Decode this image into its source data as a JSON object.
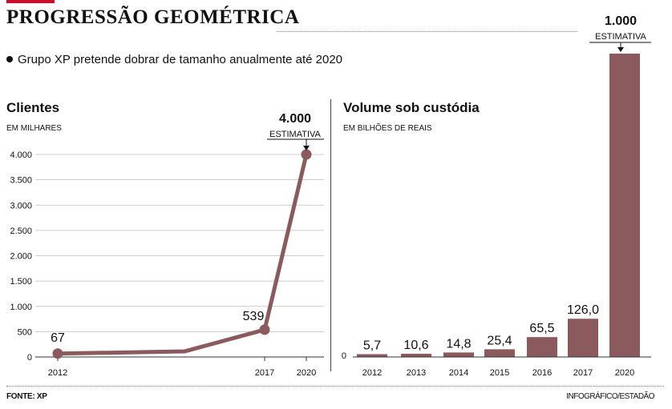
{
  "header": {
    "title": "PROGRESSÃO GEOMÉTRICA",
    "subtitle": "Grupo XP pretende dobrar de tamanho anualmente até 2020",
    "accent_color": "#c8102e"
  },
  "footer": {
    "source": "FONTE: XP",
    "credit": "INFOGRÁFICO/ESTADÃO"
  },
  "chart_data": [
    {
      "type": "line",
      "title": "Clientes",
      "subtitle": "EM MILHARES",
      "x": [
        2012,
        2015,
        2017,
        2020
      ],
      "x_tick_labels": [
        "2012",
        "2017",
        "2020"
      ],
      "values": [
        67,
        110,
        539,
        4000
      ],
      "point_labels": [
        "67",
        "",
        "539",
        "4.000"
      ],
      "marked_points": [
        true,
        false,
        true,
        true
      ],
      "annotation": {
        "value_label": "4.000",
        "note": "ESTIMATIVA"
      },
      "xlim": [
        2012,
        2020
      ],
      "ylim": [
        0,
        4000
      ],
      "y_ticks": [
        0,
        500,
        1000,
        1500,
        2000,
        2500,
        3000,
        3500,
        4000
      ],
      "y_tick_labels": [
        "0",
        "500",
        "1.000",
        "1.500",
        "2.000",
        "2.500",
        "3.000",
        "3.500",
        "4.000"
      ],
      "grid": true,
      "color": "#8a5a5c"
    },
    {
      "type": "bar",
      "title": "Volume sob custódia",
      "subtitle": "EM BILHÕES DE REAIS",
      "categories": [
        "2012",
        "2013",
        "2014",
        "2015",
        "2016",
        "2017",
        "2020"
      ],
      "values": [
        5.7,
        10.6,
        14.8,
        25.4,
        65.5,
        126.0,
        1000
      ],
      "value_labels": [
        "5,7",
        "10,6",
        "14,8",
        "25,4",
        "65,5",
        "126,0",
        "1.000"
      ],
      "annotation": {
        "value_label": "1.000",
        "note": "ESTIMATIVA"
      },
      "ylim": [
        0,
        1000
      ],
      "y_tick_labels": [
        "0"
      ],
      "color": "#8a5a5c"
    }
  ]
}
